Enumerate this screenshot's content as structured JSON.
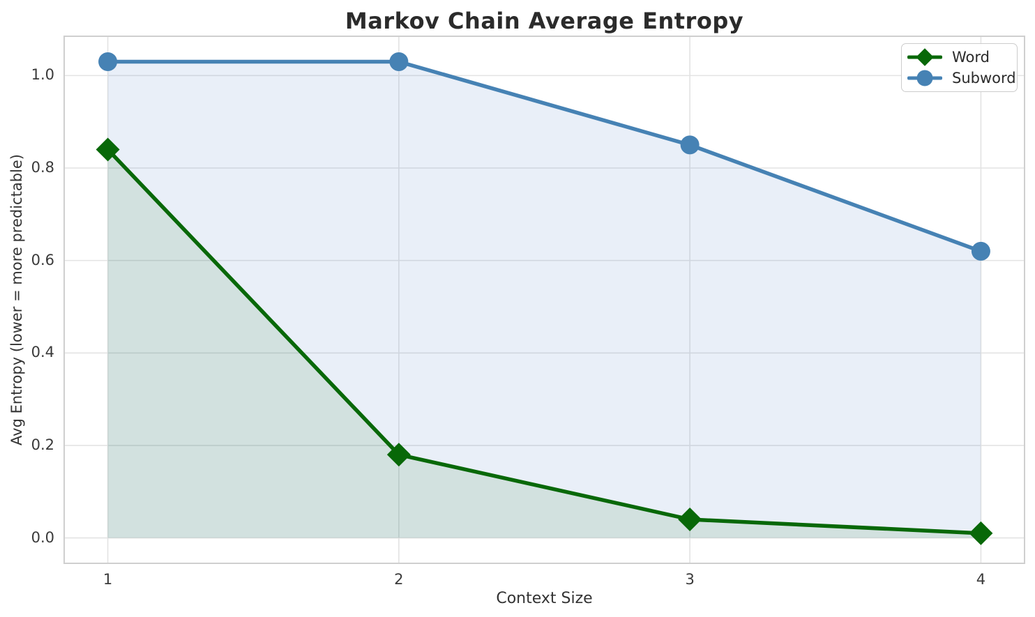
{
  "chart_data": {
    "type": "line",
    "title": "Markov Chain Average Entropy",
    "xlabel": "Context Size",
    "ylabel": "Avg Entropy (lower = more predictable)",
    "x": [
      1,
      2,
      3,
      4
    ],
    "series": [
      {
        "name": "Word",
        "marker": "diamond",
        "color": "#086808",
        "fill_color": "rgba(10,105,10,0.10)",
        "values": [
          0.84,
          0.18,
          0.04,
          0.01
        ]
      },
      {
        "name": "Subword",
        "marker": "circle",
        "color": "#4682b4",
        "fill_color": "rgba(70,120,200,0.12)",
        "values": [
          1.03,
          1.03,
          0.85,
          0.62
        ]
      }
    ],
    "xticks": [
      1,
      2,
      3,
      4
    ],
    "yticks": [
      0.0,
      0.2,
      0.4,
      0.6,
      0.8,
      1.0
    ],
    "xlim": [
      0.85,
      4.15
    ],
    "ylim": [
      -0.055,
      1.085
    ],
    "grid": true,
    "area_fill": "to-zero",
    "legend_position": "top-right",
    "grid_color": "#e3e3e3",
    "spine_color": "#cfcfcf"
  }
}
